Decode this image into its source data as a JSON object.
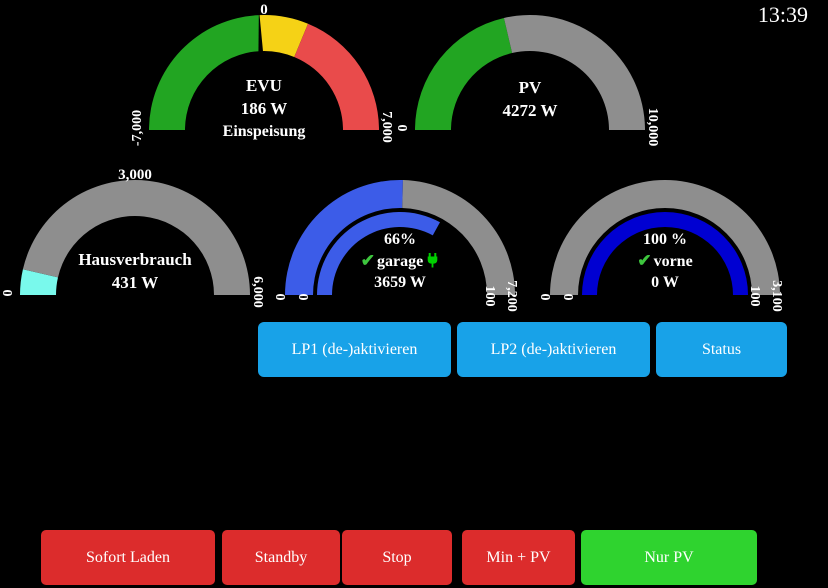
{
  "clock": "13:39",
  "colors": {
    "green": "#22a522",
    "yellow": "#f5d216",
    "red": "#e94b4b",
    "gray": "#8e8e8e",
    "cyan": "#79f9ec",
    "blue": "#3c5ce8",
    "darkblue": "#0000d2",
    "needle": "#000000",
    "button_blue": "#18a2e8",
    "button_red": "#dc2c2c",
    "button_green": "#2fd32f",
    "text": "#ffffff"
  },
  "chart_data": [
    {
      "type": "gauge",
      "title": "EVU",
      "value_w": 186,
      "direction": "Einspeisung",
      "min": -7000,
      "max": 7000,
      "mid_label": "0",
      "needle_at": -186,
      "segments": [
        {
          "from": -7000,
          "to": -186,
          "color": "green"
        },
        {
          "from": -186,
          "to": 1750,
          "color": "yellow"
        },
        {
          "from": 1750,
          "to": 7000,
          "color": "red"
        }
      ]
    },
    {
      "type": "gauge",
      "title": "PV",
      "value_w": 4272,
      "min": 0,
      "max": 10000,
      "segments": [
        {
          "from": 0,
          "to": 4272,
          "color": "green"
        },
        {
          "from": 4272,
          "to": 10000,
          "color": "gray"
        }
      ]
    },
    {
      "type": "gauge",
      "title": "Hausverbrauch",
      "value_w": 431,
      "min": 0,
      "max": 6000,
      "mid_label": "3,000",
      "segments": [
        {
          "from": 0,
          "to": 431,
          "color": "cyan"
        },
        {
          "from": 431,
          "to": 6000,
          "color": "gray"
        }
      ]
    },
    {
      "type": "gauge",
      "title": "garage",
      "soc_percent": 66,
      "value_w": 3659,
      "plugged": true,
      "min": 0,
      "max": 7200,
      "segments": [
        {
          "from": 0,
          "to": 3659,
          "color": "blue"
        },
        {
          "from": 3659,
          "to": 7200,
          "color": "gray"
        }
      ],
      "inner_min": 0,
      "inner_max": 100,
      "inner_segments": [
        {
          "from": 0,
          "to": 66,
          "color": "blue"
        }
      ]
    },
    {
      "type": "gauge",
      "title": "vorne",
      "soc_percent": 100,
      "value_w": 0,
      "plugged": false,
      "min": 0,
      "max": 3100,
      "segments": [
        {
          "from": 0,
          "to": 3100,
          "color": "gray"
        }
      ],
      "inner_min": 0,
      "inner_max": 100,
      "inner_segments": [
        {
          "from": 0,
          "to": 100,
          "color": "darkblue"
        }
      ]
    }
  ],
  "gauges": [
    {
      "key": "evu",
      "dual": false,
      "title": "EVU",
      "value": "186 W",
      "subtitle": "Einspeisung",
      "top_label": "0",
      "left_label": "-7,000",
      "right_label": "7,000",
      "scale": {
        "min": -7000,
        "max": 7000
      },
      "segments": [
        {
          "from": -7000,
          "to": -186,
          "color": "green"
        },
        {
          "from": -186,
          "to": 1750,
          "color": "yellow"
        },
        {
          "from": 1750,
          "to": 7000,
          "color": "red"
        }
      ],
      "needle_value": -186
    },
    {
      "key": "pv",
      "dual": false,
      "title": "PV",
      "value": "4272 W",
      "left_label": "0",
      "right_label": "10,000",
      "scale": {
        "min": 0,
        "max": 10000
      },
      "segments": [
        {
          "from": 0,
          "to": 4272,
          "color": "green"
        },
        {
          "from": 4272,
          "to": 10000,
          "color": "gray"
        }
      ]
    },
    {
      "key": "haus",
      "dual": false,
      "title": "Hausverbrauch",
      "value": "431 W",
      "top_label": "3,000",
      "left_label": "0",
      "right_label": "6,000",
      "scale": {
        "min": 0,
        "max": 6000
      },
      "segments": [
        {
          "from": 0,
          "to": 431,
          "color": "cyan"
        },
        {
          "from": 431,
          "to": 6000,
          "color": "gray"
        }
      ]
    },
    {
      "key": "garage",
      "dual": true,
      "soc": "66%",
      "name": "garage",
      "value": "3659 W",
      "check": true,
      "plug": true,
      "outer_left_label": "0",
      "outer_right_label": "7,200",
      "inner_left_label": "0",
      "inner_right_label": "100",
      "scale": {
        "min": 0,
        "max": 7200
      },
      "segments": [
        {
          "from": 0,
          "to": 3659,
          "color": "blue"
        },
        {
          "from": 3659,
          "to": 7200,
          "color": "gray"
        }
      ],
      "inner_scale": {
        "min": 0,
        "max": 100
      },
      "inner_segments": [
        {
          "from": 0,
          "to": 66,
          "color": "blue"
        }
      ]
    },
    {
      "key": "vorne",
      "dual": true,
      "soc": "100 %",
      "name": "vorne",
      "value": "0 W",
      "check": true,
      "plug": false,
      "outer_left_label": "0",
      "outer_right_label": "3,100",
      "inner_left_label": "0",
      "inner_right_label": "100",
      "scale": {
        "min": 0,
        "max": 3100
      },
      "segments": [
        {
          "from": 0,
          "to": 3100,
          "color": "gray"
        }
      ],
      "inner_scale": {
        "min": 0,
        "max": 100
      },
      "inner_segments": [
        {
          "from": 0,
          "to": 100,
          "color": "darkblue"
        }
      ]
    }
  ],
  "control_row": {
    "buttons": [
      {
        "label": "LP1 (de-)aktivieren"
      },
      {
        "label": "LP2 (de-)aktivieren"
      },
      {
        "label": "Status"
      }
    ]
  },
  "mode_row": {
    "active_label": "Nur PV",
    "buttons": [
      {
        "label": "Sofort Laden"
      },
      {
        "label": "Standby"
      },
      {
        "label": "Stop"
      },
      {
        "label": "Min + PV"
      },
      {
        "label": "Nur PV"
      }
    ]
  }
}
